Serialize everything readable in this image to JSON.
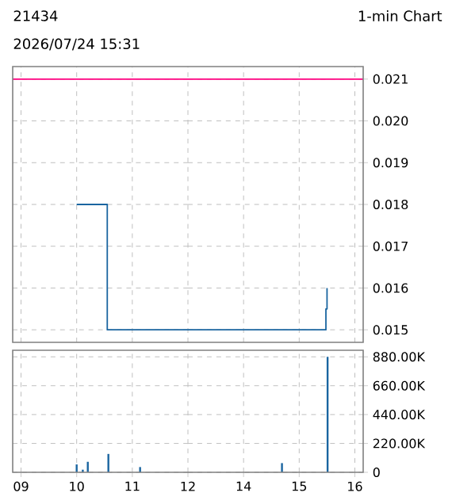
{
  "chart_data": [
    {
      "type": "step",
      "title": "21434",
      "annotations": [
        "2026/07/24 15:31"
      ],
      "x": [
        10.0,
        10.55,
        12.0
      ],
      "values": [
        0.018,
        0.015,
        0.015
      ],
      "color": "#1a65a0",
      "xlim": [
        8.85,
        12
      ],
      "xticks": [
        9,
        10,
        11,
        12
      ],
      "ylim": [
        0.0147,
        0.0213
      ],
      "yticks": [
        0.015,
        0.016,
        0.017,
        0.018,
        0.019,
        0.02,
        0.021
      ],
      "ref_lines": [
        {
          "axis": "y",
          "value": 0.021,
          "color": "#ff0080"
        }
      ],
      "grid": true,
      "tick_labels": false
    },
    {
      "type": "step",
      "title": "1-min Chart",
      "x": [
        13,
        15.48,
        15.5
      ],
      "values": [
        0.015,
        0.0155,
        0.016
      ],
      "color": "#1a65a0",
      "xlim": [
        13,
        16.15
      ],
      "xticks": [
        14,
        15,
        16
      ],
      "ylim": [
        0.0147,
        0.0213
      ],
      "yticks": [
        0.015,
        0.016,
        0.017,
        0.018,
        0.019,
        {
          "value": 0.02,
          "label": "0.020"
        },
        0.021
      ],
      "ref_lines": [
        {
          "axis": "y",
          "value": 0.021,
          "color": "#ff0080"
        }
      ],
      "grid": true,
      "tick_labels": "y"
    },
    {
      "type": "bar",
      "x": [
        10.0,
        10.11,
        10.2,
        10.57,
        11.14
      ],
      "values": [
        60000,
        20000,
        80000,
        140000,
        40000
      ],
      "color": "#1a65a0",
      "xlim": [
        8.85,
        12
      ],
      "xticks": [
        {
          "value": 9,
          "label": "09"
        },
        10,
        11,
        12
      ],
      "ylim": [
        0,
        930000
      ],
      "yticks": [
        0,
        220000,
        440000,
        660000,
        880000
      ],
      "grid": true,
      "tick_labels": "x"
    },
    {
      "type": "bar",
      "x": [
        14.69,
        15.51
      ],
      "values": [
        70000,
        880000
      ],
      "color": "#1a65a0",
      "xlim": [
        13,
        16.15
      ],
      "xticks": [
        14,
        15,
        16
      ],
      "ylim": [
        0,
        930000
      ],
      "yticks": [
        0,
        {
          "value": 220000,
          "label": "220.00K"
        },
        {
          "value": 440000,
          "label": "440.00K"
        },
        {
          "value": 660000,
          "label": "660.00K"
        },
        {
          "value": 880000,
          "label": "880.00K"
        }
      ],
      "grid": true
    }
  ]
}
